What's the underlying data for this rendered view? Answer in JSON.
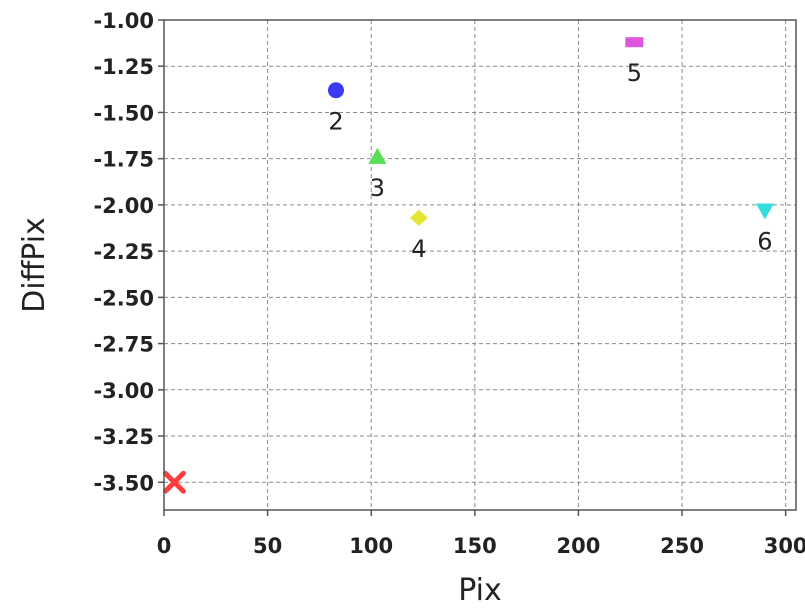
{
  "chart_data": {
    "type": "scatter",
    "title": "",
    "xlabel": "Pix",
    "ylabel": "DiffPix",
    "xlim": [
      0,
      305
    ],
    "ylim": [
      -3.65,
      -1.0
    ],
    "x_ticks": [
      0,
      50,
      100,
      150,
      200,
      250,
      300
    ],
    "x_tick_labels": [
      "0",
      "50",
      "100",
      "150",
      "200",
      "250",
      "300"
    ],
    "y_ticks": [
      -1.0,
      -1.25,
      -1.5,
      -1.75,
      -2.0,
      -2.25,
      -2.5,
      -2.75,
      -3.0,
      -3.25,
      -3.5
    ],
    "y_tick_labels": [
      "-1.00",
      "-1.25",
      "-1.50",
      "-1.75",
      "-2.00",
      "-2.25",
      "-2.50",
      "-2.75",
      "-3.00",
      "-3.25",
      "-3.50"
    ],
    "grid": true,
    "points": [
      {
        "label": "",
        "x": 5,
        "y": -3.5,
        "marker": "x",
        "color": "#ff3b3b"
      },
      {
        "label": "2",
        "x": 83,
        "y": -1.38,
        "marker": "circle",
        "color": "#3a3af0"
      },
      {
        "label": "3",
        "x": 103,
        "y": -1.74,
        "marker": "triangle-up",
        "color": "#55e055"
      },
      {
        "label": "4",
        "x": 123,
        "y": -2.07,
        "marker": "diamond",
        "color": "#e5e533"
      },
      {
        "label": "5",
        "x": 227,
        "y": -1.12,
        "marker": "square",
        "color": "#e055e0"
      },
      {
        "label": "6",
        "x": 290,
        "y": -2.03,
        "marker": "triangle-down",
        "color": "#33dddd"
      }
    ]
  }
}
